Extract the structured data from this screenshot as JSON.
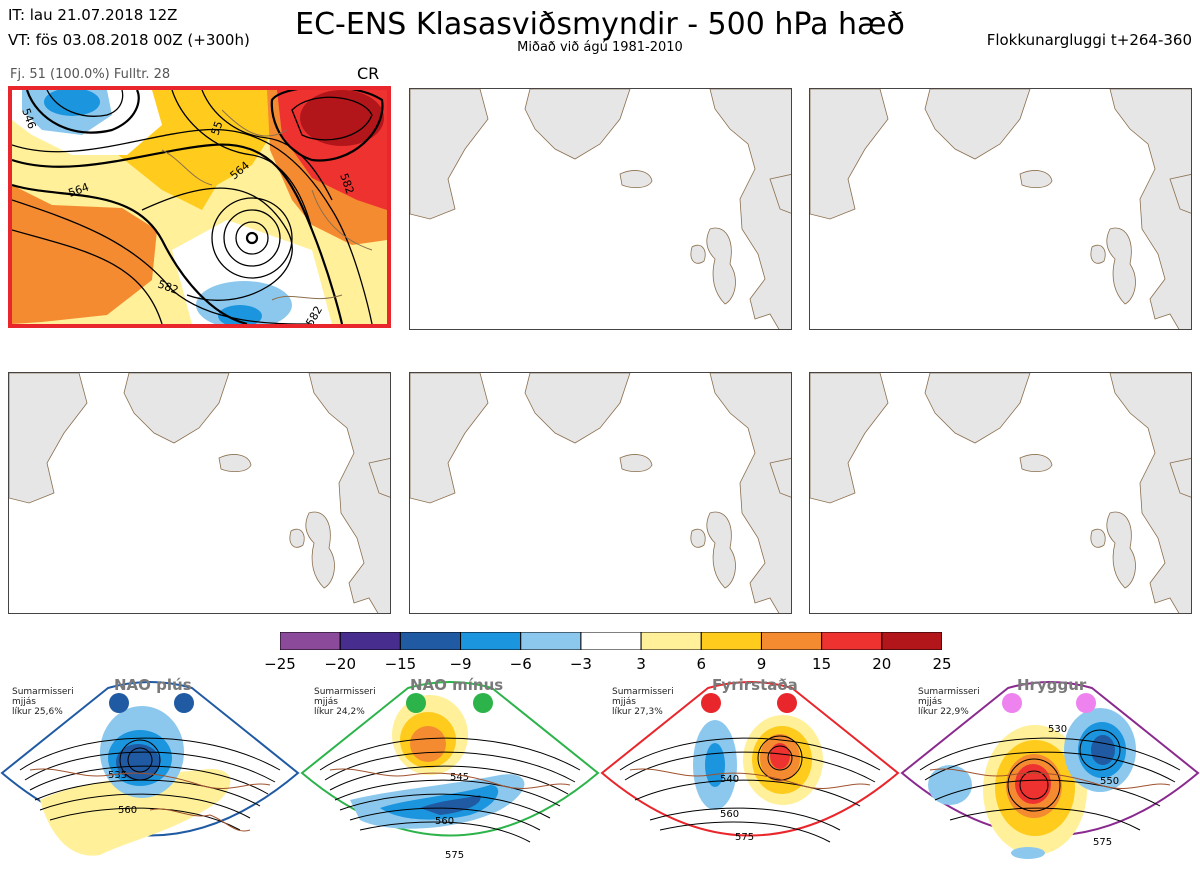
{
  "header": {
    "initial_time": "IT: lau 21.07.2018 12Z",
    "valid_time": "VT: fös 03.08.2018 00Z  (+300h)",
    "title": "EC-ENS Klasasviðsmyndir - 500 hPa hæð",
    "subtitle": "Miðað við ágú 1981-2010",
    "window": "Flokkunargluggi t+264-360"
  },
  "panels": [
    {
      "label": "Fj. 51 (100.0%)   Fulltr. 28",
      "code": "CR",
      "highlighted": true
    },
    {
      "label": "",
      "code": "",
      "highlighted": false
    },
    {
      "label": "",
      "code": "",
      "highlighted": false
    },
    {
      "label": "",
      "code": "",
      "highlighted": false
    },
    {
      "label": "",
      "code": "",
      "highlighted": false
    },
    {
      "label": "",
      "code": "",
      "highlighted": false
    }
  ],
  "panel1_contours": [
    "546",
    "564",
    "564",
    "582",
    "582",
    "582",
    "55"
  ],
  "colors": {
    "highlight_border": "#e8262b",
    "land": "#e6e6e6",
    "coast": "#8b6f4e"
  },
  "chart_data": {
    "type": "heatmap",
    "colorbar": {
      "ticks": [
        -25,
        -20,
        -15,
        -9,
        -6,
        -3,
        3,
        6,
        9,
        15,
        20,
        25
      ],
      "tick_labels": [
        "−25",
        "−20",
        "−15",
        "−9",
        "−6",
        "−3",
        "3",
        "6",
        "9",
        "15",
        "20",
        "25"
      ],
      "colors": [
        "#8c4a9b",
        "#472d8e",
        "#1f5aa3",
        "#1b95de",
        "#8cc8ee",
        "#ffffff",
        "#fff099",
        "#ffcc1e",
        "#f58b31",
        "#ee3230",
        "#b2161a"
      ]
    }
  },
  "regimes": [
    {
      "name": "NAO plús",
      "season": "Sumarmisseri",
      "mean": "mjjás",
      "prob": "líkur 25,6%",
      "frame_color": "#1f5aa3",
      "dot_color": "#1f5aa3",
      "contours": [
        "535",
        "560"
      ]
    },
    {
      "name": "NAO mínus",
      "season": "Sumarmisseri",
      "mean": "mjjás",
      "prob": "líkur 24,2%",
      "frame_color": "#2cb34a",
      "dot_color": "#2cb34a",
      "contours": [
        "545",
        "560",
        "575"
      ]
    },
    {
      "name": "Fyrirstaða",
      "season": "Sumarmisseri",
      "mean": "mjjás",
      "prob": "líkur 27,3%",
      "frame_color": "#e8262b",
      "dot_color": "#e8262b",
      "contours": [
        "540",
        "560",
        "575"
      ]
    },
    {
      "name": "Hryggur",
      "season": "Sumarmisseri",
      "mean": "mjjás",
      "prob": "líkur 22,9%",
      "frame_color": "#8a2a8e",
      "dot_color": "#ee82ee",
      "contours": [
        "530",
        "550",
        "575"
      ]
    }
  ]
}
